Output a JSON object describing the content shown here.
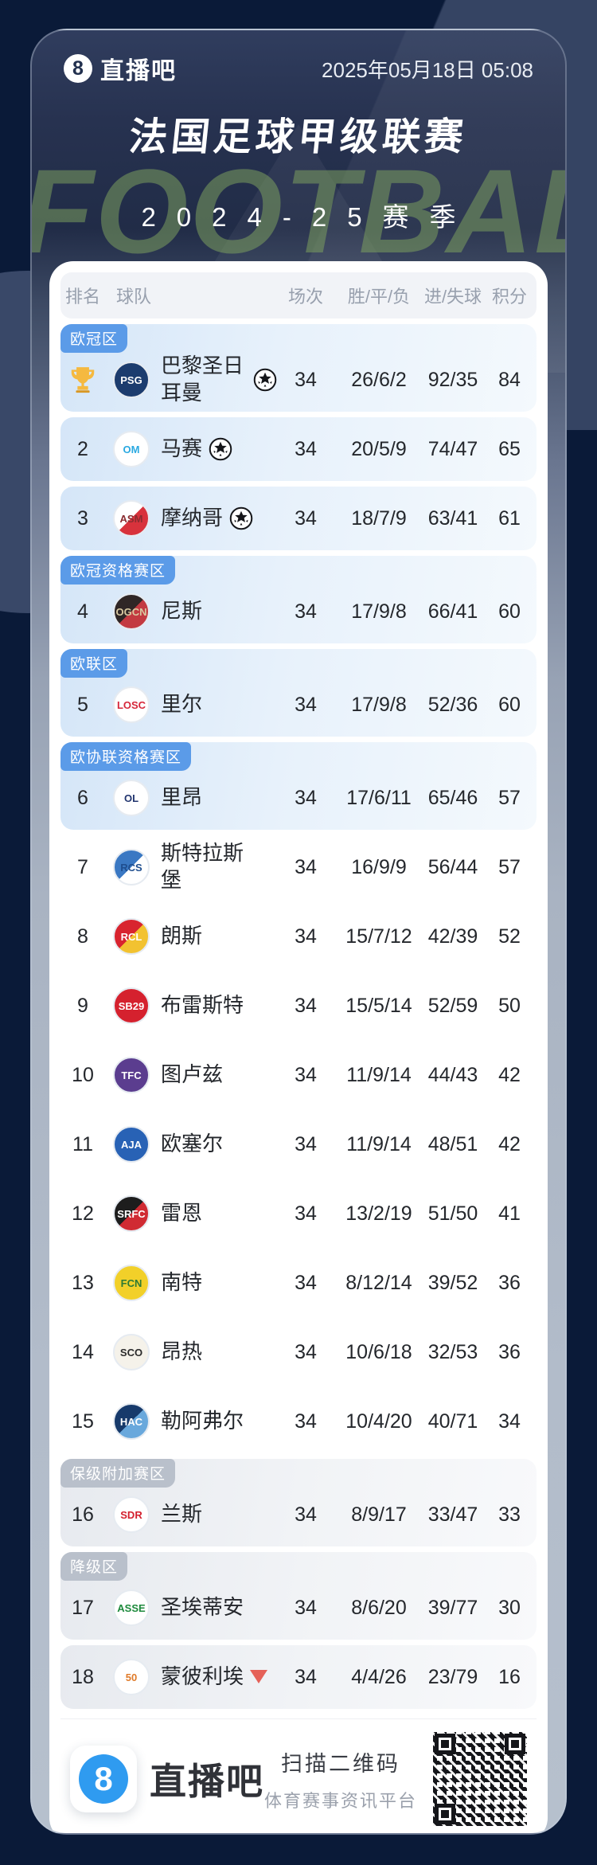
{
  "header": {
    "logo_text": "直播吧",
    "datetime": "2025年05月18日 05:08"
  },
  "title": "法国足球甲级联赛",
  "season": "2024-25赛季",
  "watermark": "FOOTBALL",
  "colors": {
    "page_bg": "#0a1a38",
    "zone_badge_blue": "#5b9be8",
    "zone_badge_gray": "#b9c0cb",
    "row_tint_blue": "#d5e6f8",
    "row_tint_gray": "#e7eaef",
    "relegation_arrow": "#e56158",
    "footer_logo_blue": "#2f9bf0"
  },
  "table": {
    "columns": [
      "排名",
      "球队",
      "场次",
      "胜/平/负",
      "进/失球",
      "积分"
    ],
    "rows": [
      {
        "rank": "",
        "rank_icon": "trophy",
        "zone_label": "欧冠区",
        "zone_style": "blue",
        "team": "巴黎圣日耳曼",
        "ucl_ball": true,
        "relegated": false,
        "played": "34",
        "wdl": "26/6/2",
        "goals": "92/35",
        "points": "84",
        "tint": "blue",
        "logo": {
          "abbr": "PSG",
          "bg": "#1c3c6e",
          "bg2": "",
          "fg": "#ffffff"
        }
      },
      {
        "rank": "2",
        "zone_label": "",
        "zone_style": "",
        "team": "马赛",
        "ucl_ball": true,
        "relegated": false,
        "played": "34",
        "wdl": "20/5/9",
        "goals": "74/47",
        "points": "65",
        "tint": "blue",
        "logo": {
          "abbr": "OM",
          "bg": "#ffffff",
          "bg2": "",
          "fg": "#2aa9e1"
        }
      },
      {
        "rank": "3",
        "zone_label": "",
        "zone_style": "",
        "team": "摩纳哥",
        "ucl_ball": true,
        "relegated": false,
        "played": "34",
        "wdl": "18/7/9",
        "goals": "63/41",
        "points": "61",
        "tint": "blue",
        "logo": {
          "abbr": "ASM",
          "bg": "#ffffff",
          "bg2": "#d8323c",
          "fg": "#8a2c30"
        }
      },
      {
        "rank": "4",
        "zone_label": "欧冠资格赛区",
        "zone_style": "blue",
        "team": "尼斯",
        "ucl_ball": false,
        "relegated": false,
        "played": "34",
        "wdl": "17/9/8",
        "goals": "66/41",
        "points": "60",
        "tint": "blue",
        "logo": {
          "abbr": "OGCN",
          "bg": "#2f2626",
          "bg2": "#c33a41",
          "fg": "#d9c9a1"
        }
      },
      {
        "rank": "5",
        "zone_label": "欧联区",
        "zone_style": "blue",
        "team": "里尔",
        "ucl_ball": false,
        "relegated": false,
        "played": "34",
        "wdl": "17/9/8",
        "goals": "52/36",
        "points": "60",
        "tint": "blue",
        "logo": {
          "abbr": "LOSC",
          "bg": "#ffffff",
          "bg2": "",
          "fg": "#d6273a"
        }
      },
      {
        "rank": "6",
        "zone_label": "欧协联资格赛区",
        "zone_style": "blue",
        "team": "里昂",
        "ucl_ball": false,
        "relegated": false,
        "played": "34",
        "wdl": "17/6/11",
        "goals": "65/46",
        "points": "57",
        "tint": "blue",
        "logo": {
          "abbr": "OL",
          "bg": "#ffffff",
          "bg2": "",
          "fg": "#22356f"
        }
      },
      {
        "rank": "7",
        "zone_label": "",
        "zone_style": "",
        "team": "斯特拉斯堡",
        "ucl_ball": false,
        "relegated": false,
        "played": "34",
        "wdl": "16/9/9",
        "goals": "56/44",
        "points": "57",
        "tint": "white",
        "logo": {
          "abbr": "RCS",
          "bg": "#3a78c3",
          "bg2": "#ffffff",
          "fg": "#1f4e8f"
        }
      },
      {
        "rank": "8",
        "zone_label": "",
        "zone_style": "",
        "team": "朗斯",
        "ucl_ball": false,
        "relegated": false,
        "played": "34",
        "wdl": "15/7/12",
        "goals": "42/39",
        "points": "52",
        "tint": "white",
        "logo": {
          "abbr": "RCL",
          "bg": "#d8242f",
          "bg2": "#f2c230",
          "fg": "#ffffff"
        }
      },
      {
        "rank": "9",
        "zone_label": "",
        "zone_style": "",
        "team": "布雷斯特",
        "ucl_ball": false,
        "relegated": false,
        "played": "34",
        "wdl": "15/5/14",
        "goals": "52/59",
        "points": "50",
        "tint": "white",
        "logo": {
          "abbr": "SB29",
          "bg": "#d5212e",
          "bg2": "",
          "fg": "#ffffff"
        }
      },
      {
        "rank": "10",
        "zone_label": "",
        "zone_style": "",
        "team": "图卢兹",
        "ucl_ball": false,
        "relegated": false,
        "played": "34",
        "wdl": "11/9/14",
        "goals": "44/43",
        "points": "42",
        "tint": "white",
        "logo": {
          "abbr": "TFC",
          "bg": "#5b3d8f",
          "bg2": "",
          "fg": "#ffffff"
        }
      },
      {
        "rank": "11",
        "zone_label": "",
        "zone_style": "",
        "team": "欧塞尔",
        "ucl_ball": false,
        "relegated": false,
        "played": "34",
        "wdl": "11/9/14",
        "goals": "48/51",
        "points": "42",
        "tint": "white",
        "logo": {
          "abbr": "AJA",
          "bg": "#2862b5",
          "bg2": "",
          "fg": "#ffffff"
        }
      },
      {
        "rank": "12",
        "zone_label": "",
        "zone_style": "",
        "team": "雷恩",
        "ucl_ball": false,
        "relegated": false,
        "played": "34",
        "wdl": "13/2/19",
        "goals": "51/50",
        "points": "41",
        "tint": "white",
        "logo": {
          "abbr": "SRFC",
          "bg": "#1d1d1d",
          "bg2": "#d02b33",
          "fg": "#ffffff"
        }
      },
      {
        "rank": "13",
        "zone_label": "",
        "zone_style": "",
        "team": "南特",
        "ucl_ball": false,
        "relegated": false,
        "played": "34",
        "wdl": "8/12/14",
        "goals": "39/52",
        "points": "36",
        "tint": "white",
        "logo": {
          "abbr": "FCN",
          "bg": "#f2d029",
          "bg2": "",
          "fg": "#2d7a34"
        }
      },
      {
        "rank": "14",
        "zone_label": "",
        "zone_style": "",
        "team": "昂热",
        "ucl_ball": false,
        "relegated": false,
        "played": "34",
        "wdl": "10/6/18",
        "goals": "32/53",
        "points": "36",
        "tint": "white",
        "logo": {
          "abbr": "SCO",
          "bg": "#f5f2ea",
          "bg2": "",
          "fg": "#2b2b2b"
        }
      },
      {
        "rank": "15",
        "zone_label": "",
        "zone_style": "",
        "team": "勒阿弗尔",
        "ucl_ball": false,
        "relegated": false,
        "played": "34",
        "wdl": "10/4/20",
        "goals": "40/71",
        "points": "34",
        "tint": "white",
        "logo": {
          "abbr": "HAC",
          "bg": "#173a6b",
          "bg2": "#69a8dc",
          "fg": "#ffffff"
        }
      },
      {
        "rank": "16",
        "zone_label": "保级附加赛区",
        "zone_style": "gray",
        "team": "兰斯",
        "ucl_ball": false,
        "relegated": false,
        "played": "34",
        "wdl": "8/9/17",
        "goals": "33/47",
        "points": "33",
        "tint": "gray",
        "logo": {
          "abbr": "SDR",
          "bg": "#ffffff",
          "bg2": "",
          "fg": "#d3202e"
        }
      },
      {
        "rank": "17",
        "zone_label": "降级区",
        "zone_style": "gray",
        "team": "圣埃蒂安",
        "ucl_ball": false,
        "relegated": false,
        "played": "34",
        "wdl": "8/6/20",
        "goals": "39/77",
        "points": "30",
        "tint": "gray",
        "logo": {
          "abbr": "ASSE",
          "bg": "#ffffff",
          "bg2": "",
          "fg": "#1d8a3c"
        }
      },
      {
        "rank": "18",
        "zone_label": "",
        "zone_style": "",
        "team": "蒙彼利埃",
        "ucl_ball": false,
        "relegated": true,
        "played": "34",
        "wdl": "4/4/26",
        "goals": "23/79",
        "points": "16",
        "tint": "gray",
        "logo": {
          "abbr": "50",
          "bg": "#ffffff",
          "bg2": "",
          "fg": "#e07b2a"
        }
      }
    ]
  },
  "footer": {
    "logo_text": "直播吧",
    "scan_title": "扫描二维码",
    "scan_sub": "体育赛事资讯平台"
  }
}
